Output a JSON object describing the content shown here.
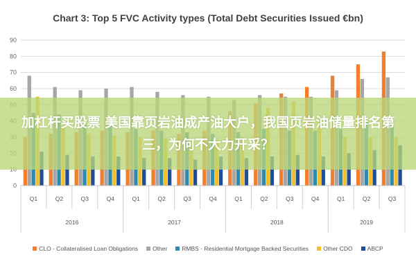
{
  "chart_data": {
    "type": "bar",
    "title": "Chart 3: Top 5 FVC Activity types (Total Debt Securities Issued €bn)",
    "xlabel": "",
    "ylabel": "",
    "ylim": [
      0,
      90
    ],
    "yticks": [
      0,
      10,
      20,
      30,
      40,
      50,
      60,
      70,
      80,
      90
    ],
    "grid": true,
    "legend_position": "bottom",
    "categories": [
      "Q1",
      "Q2",
      "Q3",
      "Q4",
      "Q1",
      "Q2",
      "Q3",
      "Q4",
      "Q1",
      "Q2",
      "Q3",
      "Q4",
      "Q1",
      "Q2",
      "Q3"
    ],
    "year_groups": [
      {
        "label": "2016",
        "count": 4
      },
      {
        "label": "2017",
        "count": 4
      },
      {
        "label": "2018",
        "count": 4
      },
      {
        "label": "2019",
        "count": 3
      }
    ],
    "series": [
      {
        "name": "CLO - Collateralised Loan Obligations",
        "color": "#f07f2e",
        "values": [
          30,
          32,
          33,
          34,
          33,
          34,
          32,
          34,
          46,
          51,
          57,
          61,
          68,
          75,
          83
        ]
      },
      {
        "name": "Other",
        "color": "#a6a6a6",
        "values": [
          68,
          61,
          59,
          60,
          61,
          58,
          56,
          55,
          53,
          56,
          55,
          55,
          59,
          66,
          67
        ]
      },
      {
        "name": "RMBS - Residential Mortgage Backed Securities",
        "color": "#2e8aad",
        "values": [
          45,
          44,
          38,
          37,
          35,
          34,
          33,
          32,
          33,
          35,
          34,
          34,
          35,
          40,
          38
        ]
      },
      {
        "name": "Other CDO",
        "color": "#f2c02b",
        "values": [
          55,
          36,
          32,
          31,
          30,
          29,
          28,
          28,
          30,
          48,
          52,
          40,
          30,
          30,
          30
        ]
      },
      {
        "name": "ABCP",
        "color": "#1f4e96",
        "values": [
          21,
          19,
          18,
          18,
          17,
          17,
          16,
          18,
          17,
          18,
          19,
          18,
          20,
          22,
          25
        ]
      }
    ]
  },
  "overlay": {
    "text": "加杠杆买股票 美国靠页岩油成产油大户，我国页岩油储量排名第三，为何不大力开采？"
  }
}
